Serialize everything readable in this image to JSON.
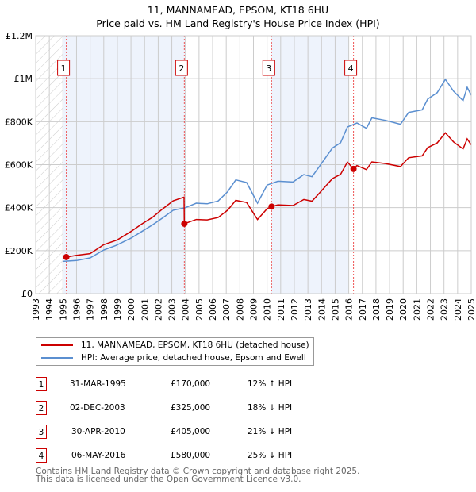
{
  "title_line1": "11, MANNAMEAD, EPSOM, KT18 6HU",
  "title_line2": "Price paid vs. HM Land Registry's House Price Index (HPI)",
  "colors": {
    "property": "#cc0000",
    "hpi": "#5b8fd0",
    "shade": "#eef3fc"
  },
  "chart_data": {
    "type": "line",
    "xlim": [
      1993,
      2025
    ],
    "ylim": [
      0,
      1200000
    ],
    "x_ticks": [
      "1993",
      "1994",
      "1995",
      "1996",
      "1997",
      "1998",
      "1999",
      "2000",
      "2001",
      "2002",
      "2003",
      "2004",
      "2005",
      "2006",
      "2007",
      "2008",
      "2009",
      "2010",
      "2011",
      "2012",
      "2013",
      "2014",
      "2015",
      "2016",
      "2017",
      "2018",
      "2019",
      "2020",
      "2021",
      "2022",
      "2023",
      "2024",
      "2025"
    ],
    "y_ticks": [
      {
        "v": 0,
        "label": "£0"
      },
      {
        "v": 200000,
        "label": "£200K"
      },
      {
        "v": 400000,
        "label": "£400K"
      },
      {
        "v": 600000,
        "label": "£600K"
      },
      {
        "v": 800000,
        "label": "£800K"
      },
      {
        "v": 1000000,
        "label": "£1M"
      },
      {
        "v": 1200000,
        "label": "£1.2M"
      }
    ],
    "grid": true,
    "hatched_range": [
      1993,
      1995
    ],
    "shaded_ranges": [
      [
        1995.0,
        2004.0
      ],
      [
        2010.3,
        2016.0
      ]
    ],
    "series": [
      {
        "name": "11, MANNAMEAD, EPSOM, KT18 6HU (detached house)",
        "color": "#cc0000",
        "x": [
          1995.0,
          1995.25,
          1996.0,
          1997.0,
          1998.0,
          1999.0,
          2000.0,
          2000.8,
          2001.6,
          2002.3,
          2003.1,
          2003.9,
          2003.92,
          2004.8,
          2005.6,
          2006.4,
          2007.1,
          2007.7,
          2008.5,
          2009.3,
          2010.0,
          2010.33,
          2010.8,
          2011.9,
          2012.7,
          2013.3,
          2013.9,
          2014.8,
          2015.4,
          2015.9,
          2016.35,
          2016.6,
          2017.3,
          2017.7,
          2018.7,
          2019.8,
          2020.4,
          2021.4,
          2021.8,
          2022.5,
          2023.1,
          2023.7,
          2024.4,
          2024.7,
          2025.0
        ],
        "y": [
          172000,
          170000,
          178000,
          186000,
          228000,
          250000,
          289000,
          324000,
          356000,
          393000,
          432000,
          449000,
          325000,
          345000,
          343000,
          354000,
          388000,
          434000,
          424000,
          345000,
          395000,
          405000,
          413000,
          410000,
          438000,
          430000,
          472000,
          535000,
          555000,
          612000,
          580000,
          596000,
          577000,
          613000,
          605000,
          591000,
          632000,
          641000,
          679000,
          701000,
          748000,
          706000,
          673000,
          720000,
          692000
        ]
      },
      {
        "name": "HPI: Average price, detached house, Epsom and Ewell",
        "color": "#5b8fd0",
        "x": [
          1995.0,
          1996.0,
          1997.0,
          1998.0,
          1998.9,
          2000.0,
          2000.8,
          2001.6,
          2002.3,
          2003.1,
          2004.0,
          2004.8,
          2005.6,
          2006.4,
          2007.1,
          2007.7,
          2008.5,
          2009.3,
          2010.0,
          2010.8,
          2011.9,
          2012.7,
          2013.3,
          2013.9,
          2014.8,
          2015.4,
          2015.9,
          2016.6,
          2017.3,
          2017.7,
          2018.7,
          2019.8,
          2020.4,
          2021.4,
          2021.8,
          2022.5,
          2023.1,
          2023.7,
          2024.4,
          2024.7,
          2025.0
        ],
        "y": [
          150000,
          154000,
          166000,
          203000,
          224000,
          258000,
          289000,
          320000,
          351000,
          388000,
          400000,
          421000,
          418000,
          431000,
          474000,
          529000,
          517000,
          421000,
          505000,
          523000,
          519000,
          554000,
          544000,
          597000,
          677000,
          702000,
          775000,
          794000,
          769000,
          818000,
          806000,
          788000,
          843000,
          855000,
          905000,
          935000,
          997000,
          942000,
          898000,
          960000,
          923000
        ]
      }
    ],
    "sales": [
      {
        "label": "1",
        "x": 1995.25,
        "y": 170000
      },
      {
        "label": "2",
        "x": 2003.92,
        "y": 325000
      },
      {
        "label": "3",
        "x": 2010.33,
        "y": 405000
      },
      {
        "label": "4",
        "x": 2016.35,
        "y": 580000
      }
    ]
  },
  "legend": {
    "property": "11, MANNAMEAD, EPSOM, KT18 6HU (detached house)",
    "hpi": "HPI: Average price, detached house, Epsom and Ewell"
  },
  "transactions": [
    {
      "num": "1",
      "date": "31-MAR-1995",
      "price": "£170,000",
      "hpi": "12% ↑ HPI"
    },
    {
      "num": "2",
      "date": "02-DEC-2003",
      "price": "£325,000",
      "hpi": "18% ↓ HPI"
    },
    {
      "num": "3",
      "date": "30-APR-2010",
      "price": "£405,000",
      "hpi": "21% ↓ HPI"
    },
    {
      "num": "4",
      "date": "06-MAY-2016",
      "price": "£580,000",
      "hpi": "25% ↓ HPI"
    }
  ],
  "footer_line1": "Contains HM Land Registry data © Crown copyright and database right 2025.",
  "footer_line2": "This data is licensed under the Open Government Licence v3.0."
}
